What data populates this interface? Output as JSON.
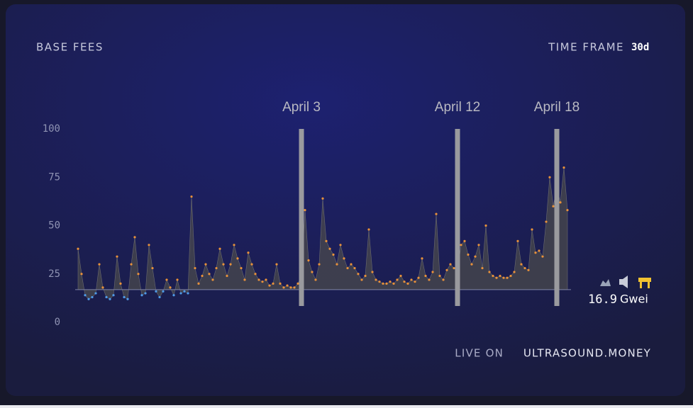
{
  "chart_data": {
    "type": "area",
    "title": "BASE FEES",
    "time_frame_label": "TIME FRAME",
    "time_frame": "30d",
    "footer_prefix": "LIVE ON",
    "footer_site": "ULTRASOUND.MONEY",
    "current_fee": 16.9,
    "unit": "Gwei",
    "values": [
      38,
      25,
      14,
      12,
      13,
      15,
      30,
      18,
      13,
      12,
      14,
      34,
      20,
      13,
      12,
      30,
      44,
      25,
      14,
      15,
      40,
      28,
      16,
      13,
      16,
      22,
      18,
      14,
      22,
      15,
      16,
      15,
      65,
      28,
      20,
      24,
      30,
      25,
      22,
      28,
      38,
      30,
      24,
      30,
      40,
      33,
      28,
      22,
      36,
      30,
      25,
      22,
      21,
      22,
      19,
      20,
      30,
      20,
      18,
      19,
      18,
      18,
      20,
      24,
      58,
      32,
      26,
      22,
      30,
      64,
      42,
      38,
      35,
      30,
      40,
      33,
      28,
      30,
      28,
      25,
      22,
      24,
      48,
      26,
      22,
      21,
      20,
      20,
      21,
      20,
      22,
      24,
      21,
      20,
      22,
      21,
      23,
      33,
      24,
      22,
      26,
      56,
      24,
      22,
      27,
      30,
      28,
      26,
      40,
      42,
      35,
      30,
      34,
      40,
      28,
      50,
      26,
      24,
      23,
      24,
      23,
      23,
      24,
      26,
      42,
      30,
      28,
      27,
      48,
      36,
      37,
      34,
      52,
      75,
      60,
      70,
      62,
      80,
      58
    ],
    "above_color": "#e8913a",
    "below_color": "#4f9be8",
    "area_color": "#4a4a4c",
    "ylim": [
      0,
      100
    ],
    "yticks": [
      0,
      25,
      50,
      75,
      100
    ],
    "annotations": [
      {
        "label": "April 3",
        "x": 63
      },
      {
        "label": "April 12",
        "x": 107
      },
      {
        "label": "April 18",
        "x": 135
      }
    ]
  }
}
